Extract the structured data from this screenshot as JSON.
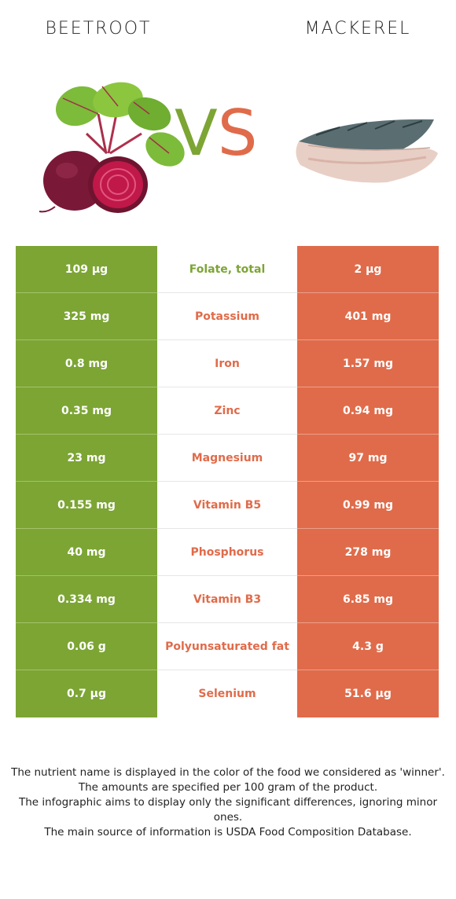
{
  "header": {
    "left_food": "BEETROOT",
    "right_food": "MACKEREL",
    "vs_text": "VS"
  },
  "colors": {
    "winner_left": "#7ca534",
    "winner_right": "#e06b4a"
  },
  "icons": {
    "left_image": "beetroot-image",
    "right_image": "mackerel-fillet-image"
  },
  "rows": [
    {
      "left": "109 µg",
      "nutrient": "Folate, total",
      "right": "2 µg",
      "winner": "left"
    },
    {
      "left": "325 mg",
      "nutrient": "Potassium",
      "right": "401 mg",
      "winner": "right"
    },
    {
      "left": "0.8 mg",
      "nutrient": "Iron",
      "right": "1.57 mg",
      "winner": "right"
    },
    {
      "left": "0.35 mg",
      "nutrient": "Zinc",
      "right": "0.94 mg",
      "winner": "right"
    },
    {
      "left": "23 mg",
      "nutrient": "Magnesium",
      "right": "97 mg",
      "winner": "right"
    },
    {
      "left": "0.155 mg",
      "nutrient": "Vitamin B5",
      "right": "0.99 mg",
      "winner": "right"
    },
    {
      "left": "40 mg",
      "nutrient": "Phosphorus",
      "right": "278 mg",
      "winner": "right"
    },
    {
      "left": "0.334 mg",
      "nutrient": "Vitamin B3",
      "right": "6.85 mg",
      "winner": "right"
    },
    {
      "left": "0.06 g",
      "nutrient": "Polyunsaturated fat",
      "right": "4.3 g",
      "winner": "right"
    },
    {
      "left": "0.7 µg",
      "nutrient": "Selenium",
      "right": "51.6 µg",
      "winner": "right"
    }
  ],
  "footnotes": [
    "The nutrient name is displayed in the color of the food we considered as 'winner'.",
    "The amounts are specified per 100 gram of the product.",
    "The infographic aims to display only the significant differences, ignoring minor ones.",
    "The main source of information is USDA Food Composition Database."
  ]
}
